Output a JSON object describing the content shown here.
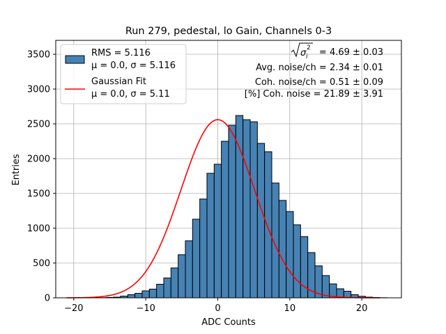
{
  "chart_data": {
    "type": "bar",
    "title": "Run 279, pedestal, lo Gain, Channels 0-3",
    "xlabel": "ADC Counts",
    "ylabel": "Entries",
    "xlim": [
      -22.5,
      25.5
    ],
    "ylim": [
      0,
      3700
    ],
    "xticks": [
      -20,
      -10,
      0,
      10,
      20
    ],
    "xtick_labels": [
      "−20",
      "−10",
      "0",
      "10",
      "20"
    ],
    "yticks": [
      0,
      500,
      1000,
      1500,
      2000,
      2500,
      3000,
      3500
    ],
    "grid": true,
    "legend_position": "top-left",
    "histogram": {
      "name": "RMS = 5.116",
      "label_line2": "μ = 0.0, σ = 5.116",
      "color": "#4682b4",
      "edge_color": "#000000",
      "bin_edges_start": -20.5,
      "bin_width": 1,
      "counts": [
        0,
        0,
        0,
        0,
        2,
        6,
        10,
        25,
        45,
        65,
        100,
        125,
        195,
        285,
        430,
        620,
        820,
        1130,
        1420,
        1790,
        1920,
        2250,
        2480,
        2620,
        2560,
        2530,
        2220,
        2100,
        1650,
        1400,
        1240,
        1050,
        880,
        650,
        460,
        320,
        200,
        130,
        95,
        45,
        22,
        10,
        5,
        2
      ]
    },
    "fit": {
      "name": "Gaussian Fit",
      "label_line2": "μ = 0.0, σ = 5.11",
      "color": "#ff0000",
      "mu": 0.0,
      "sigma": 5.11,
      "amplitude": 2560,
      "x_range": [
        -21,
        22.5
      ]
    },
    "annotations": {
      "line1_suffix": " = 4.69 ± 0.03",
      "line2": "Avg. noise/ch = 2.34 ± 0.01",
      "line3": "Coh. noise/ch = 0.51 ± 0.09",
      "line4": "[%] Coh. noise = 21.89 ± 3.91"
    }
  }
}
